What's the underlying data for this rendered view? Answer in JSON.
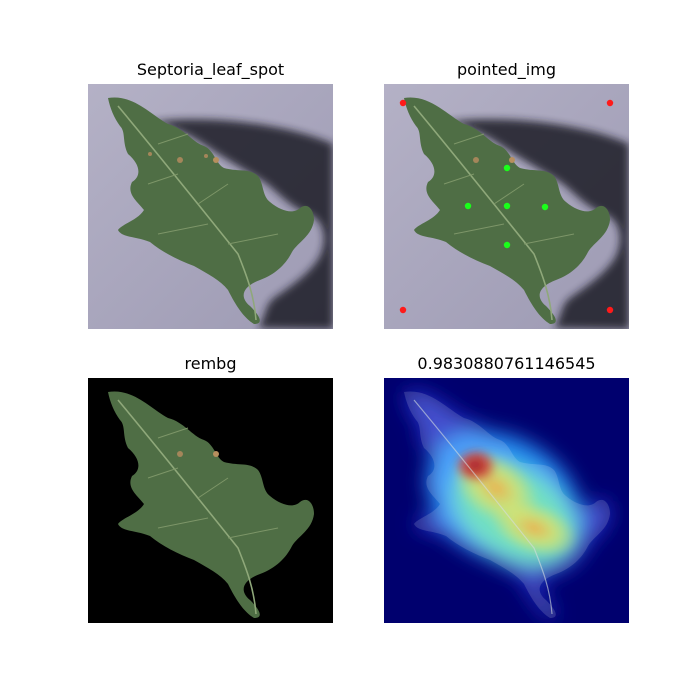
{
  "panels": {
    "original": {
      "title": "Septoria_leaf_spot"
    },
    "pointed": {
      "title": "pointed_img"
    },
    "rembg": {
      "title": "rembg"
    },
    "heatmap": {
      "title": "0.9830880761146545"
    }
  },
  "colors": {
    "leaf": "#4f6e45",
    "leaf_dark": "#3a5433",
    "background_paper": "#a9a6bd",
    "shadow": "#1c1c28",
    "point_corner": "#ff1a1a",
    "point_leaf": "#1aff1a",
    "heat_bg": "#00006e"
  }
}
